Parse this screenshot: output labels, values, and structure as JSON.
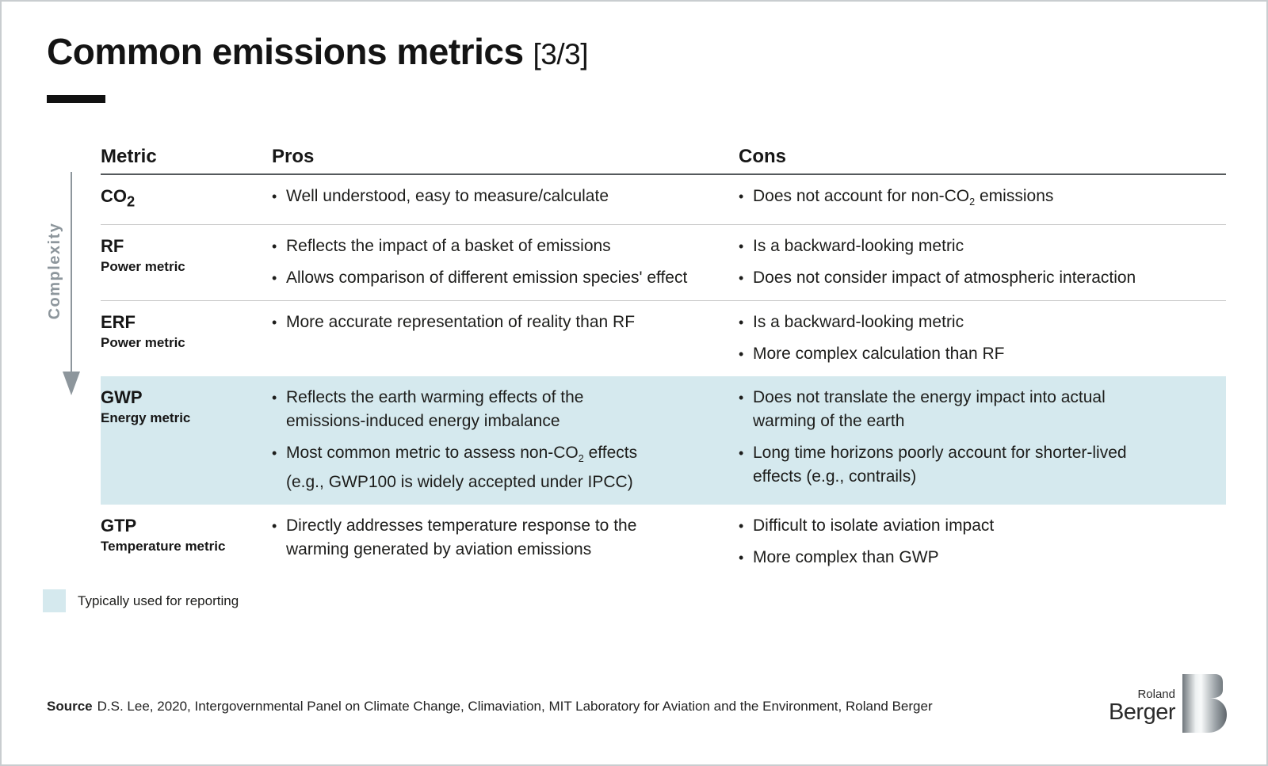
{
  "slide": {
    "title": "Common emissions metrics",
    "title_suffix": "[3/3]",
    "source_label": "Source",
    "source_text": "D.S. Lee, 2020, Intergovernmental Panel on Climate Change, Climaviation, MIT Laboratory for Aviation and the Environment, Roland Berger"
  },
  "axis": {
    "label": "Complexity"
  },
  "legend": {
    "label": "Typically used for reporting"
  },
  "colors": {
    "highlight": "#d5e9ee",
    "accent_black": "#111111",
    "axis_gray": "#8d969c"
  },
  "logo": {
    "top": "Roland",
    "bottom": "Berger"
  },
  "table": {
    "headers": [
      "Metric",
      "Pros",
      "Cons"
    ],
    "rows": [
      {
        "id": "co2",
        "metric": "CO~2~",
        "sub": "",
        "pros": [
          "Well understood, easy to measure/calculate"
        ],
        "cons": [
          "Does not account for non-CO~2~ emissions"
        ],
        "highlighted": false,
        "divider": true
      },
      {
        "id": "rf",
        "metric": "RF",
        "sub": "Power metric",
        "pros": [
          "Reflects the impact of a basket of emissions",
          "Allows comparison of different emission species' effect"
        ],
        "cons": [
          "Is a backward-looking metric",
          "Does not consider impact of atmospheric interaction"
        ],
        "highlighted": false,
        "divider": true
      },
      {
        "id": "erf",
        "metric": "ERF",
        "sub": "Power metric",
        "pros": [
          "More accurate representation of reality than RF"
        ],
        "cons": [
          "Is a backward-looking metric",
          "More complex calculation than RF"
        ],
        "highlighted": false,
        "divider": false
      },
      {
        "id": "gwp",
        "metric": "GWP",
        "sub": "Energy metric",
        "pros": [
          "Reflects the earth warming effects of the\nemissions-induced energy imbalance",
          "Most common metric to assess non-CO~2~ effects\n(e.g., GWP100 is widely accepted under IPCC)"
        ],
        "cons": [
          "Does not translate the energy impact into actual\nwarming of the earth",
          "Long time horizons poorly account for shorter-lived\neffects (e.g., contrails)"
        ],
        "highlighted": true,
        "divider": false
      },
      {
        "id": "gtp",
        "metric": "GTP",
        "sub": "Temperature metric",
        "pros": [
          "Directly addresses temperature response to the\nwarming generated by aviation emissions"
        ],
        "cons": [
          "Difficult to isolate aviation impact",
          "More complex than GWP"
        ],
        "highlighted": false,
        "divider": false
      }
    ]
  }
}
